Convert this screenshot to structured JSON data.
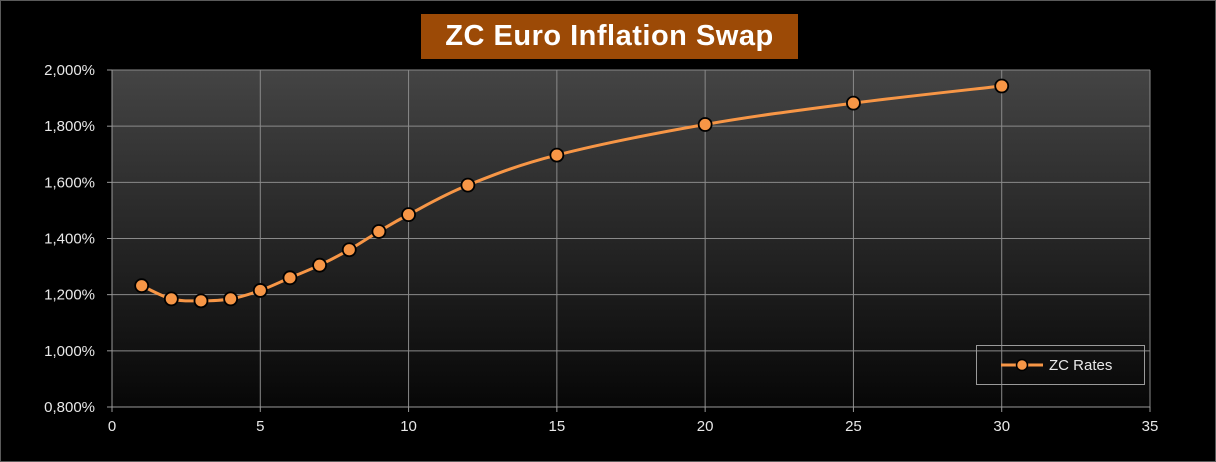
{
  "chart_data": {
    "type": "line",
    "title": "ZC Euro Inflation Swap",
    "xlabel": "",
    "ylabel": "",
    "xlim": [
      0,
      35
    ],
    "ylim": [
      0.8,
      2.0
    ],
    "x_ticks": [
      "0",
      "5",
      "10",
      "15",
      "20",
      "25",
      "30",
      "35"
    ],
    "y_ticks": [
      "0,800%",
      "1,000%",
      "1,200%",
      "1,400%",
      "1,600%",
      "1,800%",
      "2,000%"
    ],
    "grid": true,
    "legend_position": "bottom-right",
    "series": [
      {
        "name": "ZC Rates",
        "color": "#f79646",
        "marker_fill": "#f79646",
        "marker_edge": "#000000",
        "smooth": true,
        "x": [
          1,
          2,
          3,
          4,
          5,
          6,
          7,
          8,
          9,
          10,
          12,
          15,
          20,
          25,
          30
        ],
        "y": [
          1.232,
          1.185,
          1.178,
          1.185,
          1.215,
          1.26,
          1.305,
          1.36,
          1.425,
          1.485,
          1.59,
          1.697,
          1.806,
          1.882,
          1.943
        ]
      }
    ]
  }
}
